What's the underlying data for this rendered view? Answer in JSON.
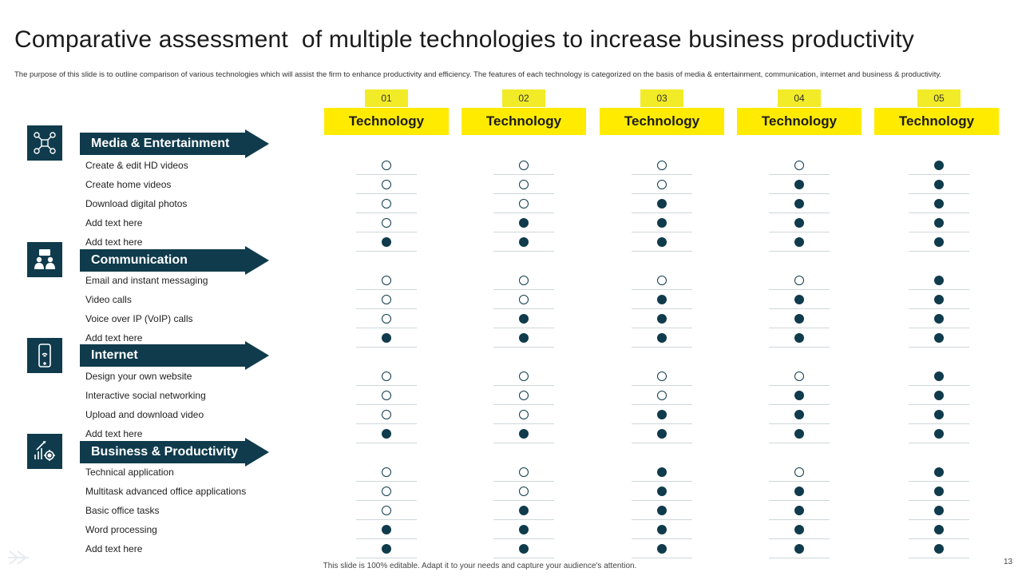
{
  "title": "Comparative assessment  of multiple technologies to increase business productivity",
  "subtitle": "The purpose of this slide is to outline comparison of various technologies which will assist the firm to enhance productivity and efficiency. The features of each technology is categorized on the basis of media  & entertainment,  communication,  internet and business & productivity.",
  "columns": [
    {
      "num": "01",
      "label": "Technology"
    },
    {
      "num": "02",
      "label": "Technology"
    },
    {
      "num": "03",
      "label": "Technology"
    },
    {
      "num": "04",
      "label": "Technology"
    },
    {
      "num": "05",
      "label": "Technology"
    }
  ],
  "categories": [
    {
      "name": "Media & Entertainment",
      "icon": "network-nodes-icon",
      "features": [
        {
          "label": "Create & edit HD videos",
          "marks": [
            0,
            0,
            0,
            0,
            1
          ]
        },
        {
          "label": "Create home videos",
          "marks": [
            0,
            0,
            0,
            1,
            1
          ]
        },
        {
          "label": "Download digital photos",
          "marks": [
            0,
            0,
            1,
            1,
            1
          ]
        },
        {
          "label": "Add text here",
          "marks": [
            0,
            1,
            1,
            1,
            1
          ]
        },
        {
          "label": "Add text here",
          "marks": [
            1,
            1,
            1,
            1,
            1
          ]
        }
      ]
    },
    {
      "name": "Communication",
      "icon": "people-chat-icon",
      "features": [
        {
          "label": "Email and instant messaging",
          "marks": [
            0,
            0,
            0,
            0,
            1
          ]
        },
        {
          "label": "Video calls",
          "marks": [
            0,
            0,
            1,
            1,
            1
          ]
        },
        {
          "label": "Voice over IP (VoIP) calls",
          "marks": [
            0,
            1,
            1,
            1,
            1
          ]
        },
        {
          "label": "Add text here",
          "marks": [
            1,
            1,
            1,
            1,
            1
          ]
        }
      ]
    },
    {
      "name": "Internet",
      "icon": "mobile-wifi-icon",
      "features": [
        {
          "label": "Design your own website",
          "marks": [
            0,
            0,
            0,
            0,
            1
          ]
        },
        {
          "label": "Interactive social networking",
          "marks": [
            0,
            0,
            0,
            1,
            1
          ]
        },
        {
          "label": "Upload and download video",
          "marks": [
            0,
            0,
            1,
            1,
            1
          ]
        },
        {
          "label": "Add text here",
          "marks": [
            1,
            1,
            1,
            1,
            1
          ]
        }
      ]
    },
    {
      "name": "Business & Productivity",
      "icon": "growth-gear-icon",
      "features": [
        {
          "label": "Technical application",
          "marks": [
            0,
            0,
            1,
            0,
            1
          ]
        },
        {
          "label": "Multitask advanced office applications",
          "marks": [
            0,
            0,
            1,
            1,
            1
          ]
        },
        {
          "label": "Basic office tasks",
          "marks": [
            0,
            1,
            1,
            1,
            1
          ]
        },
        {
          "label": "Word processing",
          "marks": [
            1,
            1,
            1,
            1,
            1
          ]
        },
        {
          "label": "Add text here",
          "marks": [
            1,
            1,
            1,
            1,
            1
          ]
        }
      ]
    }
  ],
  "footer": "This slide is 100% editable.  Adapt it to your needs and capture your audience's attention.",
  "page_number": "13",
  "colors": {
    "accent": "#ffeb00",
    "dark": "#0f3b4c",
    "filled_dot": "#0f3b4c",
    "empty_dot_border": "#0f3b4c"
  }
}
